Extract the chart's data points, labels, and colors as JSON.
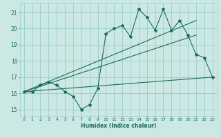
{
  "title": "",
  "xlabel": "Humidex (Indice chaleur)",
  "bg_color": "#cce8e4",
  "grid_color": "#99cccc",
  "line_color": "#1a6b5a",
  "xlim": [
    -0.5,
    23.5
  ],
  "ylim": [
    14.6,
    21.6
  ],
  "xticks": [
    0,
    1,
    2,
    3,
    4,
    5,
    6,
    7,
    8,
    9,
    10,
    11,
    12,
    13,
    14,
    15,
    16,
    17,
    18,
    19,
    20,
    21,
    22,
    23
  ],
  "yticks": [
    15,
    16,
    17,
    18,
    19,
    20,
    21
  ],
  "series1_x": [
    0,
    1,
    2,
    3,
    4,
    5,
    6,
    7,
    8,
    9,
    10,
    11,
    12,
    13,
    14,
    15,
    16,
    17,
    18,
    19,
    20,
    21,
    22,
    23
  ],
  "series1_y": [
    16.1,
    16.1,
    16.5,
    16.7,
    16.5,
    16.1,
    15.8,
    15.0,
    15.3,
    16.3,
    19.7,
    20.0,
    20.2,
    19.5,
    21.2,
    20.7,
    19.9,
    21.2,
    19.9,
    20.5,
    19.6,
    18.4,
    18.2,
    17.0
  ],
  "series2_x": [
    0,
    21
  ],
  "series2_y": [
    16.1,
    20.5
  ],
  "series3_x": [
    0,
    21
  ],
  "series3_y": [
    16.1,
    19.6
  ],
  "series4_x": [
    0,
    23
  ],
  "series4_y": [
    16.1,
    17.0
  ]
}
